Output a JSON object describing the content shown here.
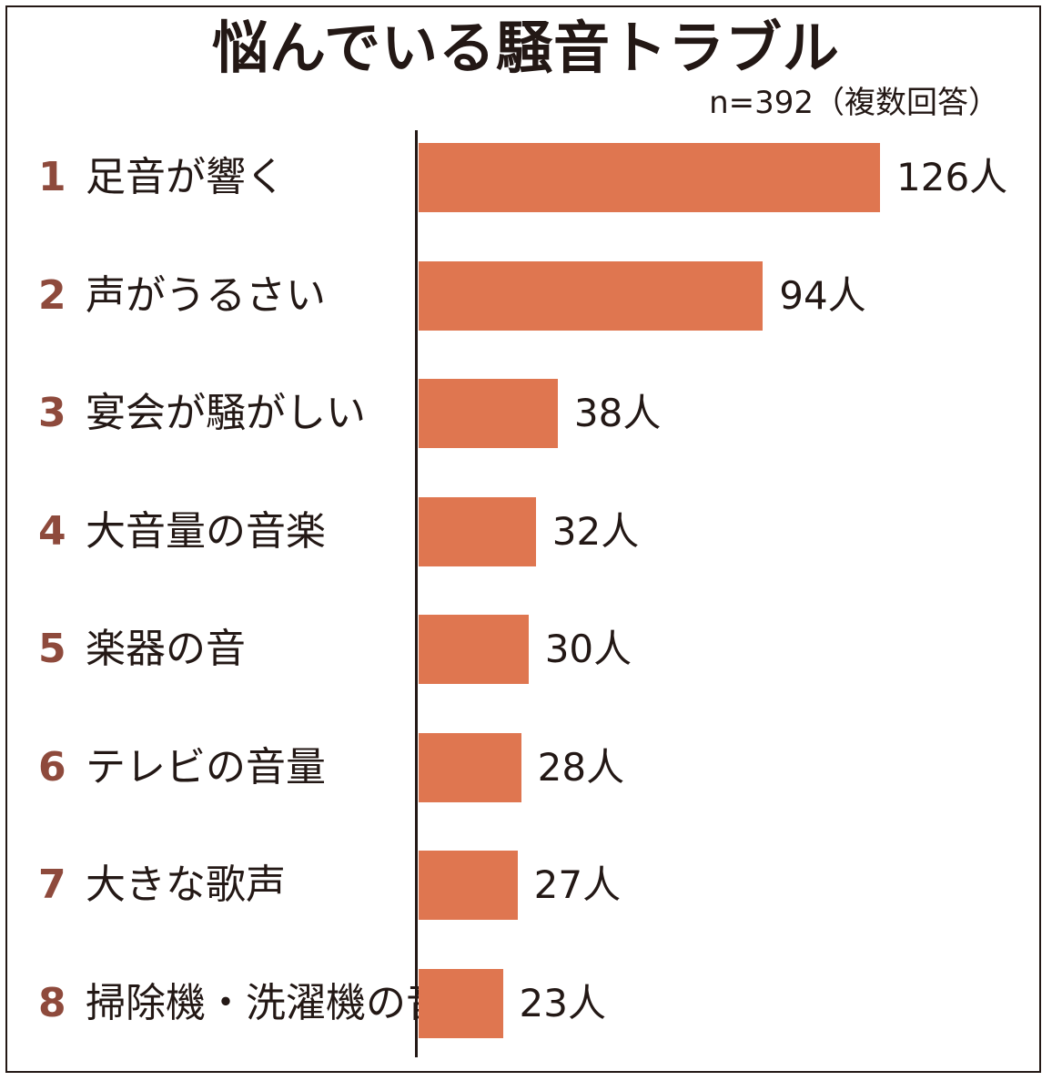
{
  "chart_data": {
    "type": "bar",
    "orientation": "horizontal",
    "title": "悩んでいる騒音トラブル",
    "note": "n=392（複数回答）",
    "bar_color": "#df7650",
    "rank_color": "#8e4a3c",
    "value_suffix": "人",
    "xlim": [
      0,
      126
    ],
    "items": [
      {
        "rank": "1",
        "label": "足音が響く",
        "value": 126
      },
      {
        "rank": "2",
        "label": "声がうるさい",
        "value": 94
      },
      {
        "rank": "3",
        "label": "宴会が騒がしい",
        "value": 38
      },
      {
        "rank": "4",
        "label": "大音量の音楽",
        "value": 32
      },
      {
        "rank": "5",
        "label": "楽器の音",
        "value": 30
      },
      {
        "rank": "6",
        "label": "テレビの音量",
        "value": 28
      },
      {
        "rank": "7",
        "label": "大きな歌声",
        "value": 27
      },
      {
        "rank": "8",
        "label": "掃除機・洗濯機の音",
        "value": 23
      }
    ]
  }
}
